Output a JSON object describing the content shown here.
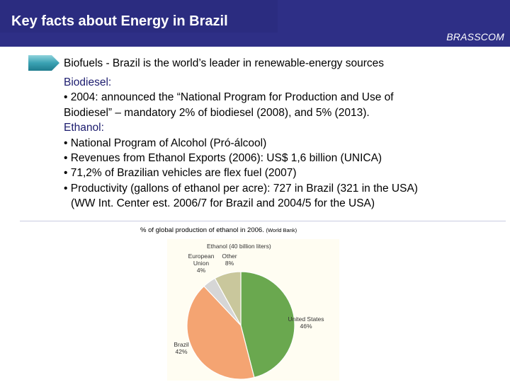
{
  "header": {
    "title": "Key facts about Energy in Brazil",
    "brand": "BRASSCOM",
    "bg_color": "#2e2f86"
  },
  "section": {
    "heading": "Biofuels - Brazil is the world’s leader in renewable-energy sources",
    "arrow_icon": "chevron-arrow-icon",
    "arrow_color": "#3aa2b3"
  },
  "body": {
    "biodiesel_heading": "Biodiesel:",
    "biodiesel_line1": "• 2004: announced the “National Program for Production and Use of",
    "biodiesel_line2": "Biodiesel” – mandatory 2% of biodiesel (2008), and 5% (2013).",
    "ethanol_heading": "Ethanol:",
    "ethanol_items": [
      "• National Program of Alcohol (Pró-álcool)",
      "• Revenues from Ethanol Exports (2006): US$ 1,6 billion (UNICA)",
      "• 71,2% of Brazilian vehicles are flex fuel (2007)",
      "• Productivity (gallons of ethanol per acre): 727 in Brazil (321 in the USA)",
      "(WW Int. Center est. 2006/7 for Brazil and 2004/5 for the USA)"
    ]
  },
  "chart_caption": {
    "main": "% of global production of ethanol in 2006.",
    "source": "(World Bank)"
  },
  "chart_data": {
    "type": "pie",
    "title": "Ethanol (40 billion liters)",
    "slices": [
      {
        "label": "United States",
        "value": 46,
        "value_label": "46%",
        "color": "#6aa84f"
      },
      {
        "label": "Brazil",
        "value": 42,
        "value_label": "42%",
        "color": "#f4a472"
      },
      {
        "label": "European Union",
        "label_lines": [
          "European",
          "Union"
        ],
        "value": 4,
        "value_label": "4%",
        "color": "#d6d6d6"
      },
      {
        "label": "Other",
        "value": 8,
        "value_label": "8%",
        "color": "#c9c79c"
      }
    ]
  }
}
